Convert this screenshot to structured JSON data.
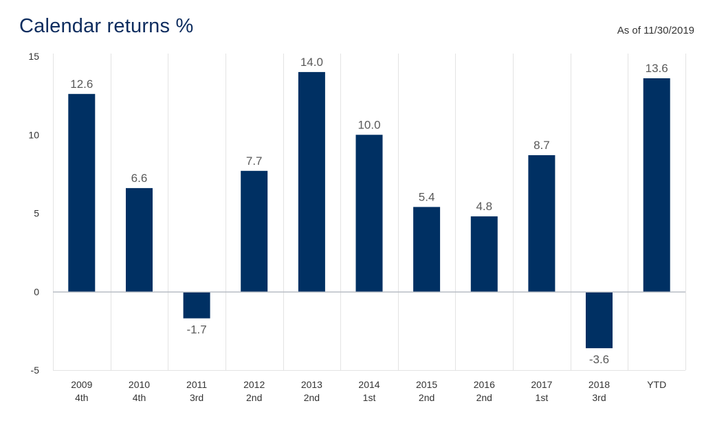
{
  "header": {
    "title": "Calendar returns %",
    "as_of": "As of 11/30/2019"
  },
  "colors": {
    "bar": "#003063",
    "grid": "#e3e3e3",
    "zero_line": "#b8bcc4",
    "axis_text": "#333333",
    "label_text": "#595959"
  },
  "chart_data": {
    "type": "bar",
    "title": "Calendar returns %",
    "categories": [
      {
        "year": "2009",
        "quartile": "4th"
      },
      {
        "year": "2010",
        "quartile": "4th"
      },
      {
        "year": "2011",
        "quartile": "3rd"
      },
      {
        "year": "2012",
        "quartile": "2nd"
      },
      {
        "year": "2013",
        "quartile": "2nd"
      },
      {
        "year": "2014",
        "quartile": "1st"
      },
      {
        "year": "2015",
        "quartile": "2nd"
      },
      {
        "year": "2016",
        "quartile": "2nd"
      },
      {
        "year": "2017",
        "quartile": "1st"
      },
      {
        "year": "2018",
        "quartile": "3rd"
      },
      {
        "year": "YTD",
        "quartile": ""
      }
    ],
    "values": [
      12.6,
      6.6,
      -1.7,
      7.7,
      14.0,
      10.0,
      5.4,
      4.8,
      8.7,
      -3.6,
      13.6
    ],
    "value_labels": [
      "12.6",
      "6.6",
      "-1.7",
      "7.7",
      "14.0",
      "10.0",
      "5.4",
      "4.8",
      "8.7",
      "-3.6",
      "13.6"
    ],
    "ylim": [
      -5,
      15
    ],
    "yticks": [
      15,
      10,
      5,
      0,
      -5
    ],
    "ytick_labels": [
      "15",
      "10",
      "5",
      "0",
      "-5"
    ],
    "xlabel": "",
    "ylabel": "",
    "grid": true,
    "legend": "none"
  }
}
